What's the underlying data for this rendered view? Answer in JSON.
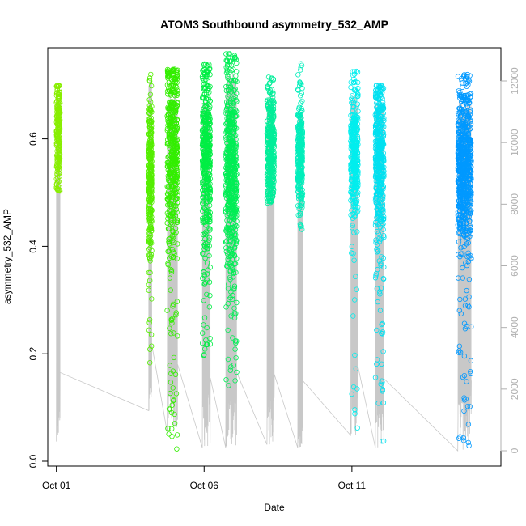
{
  "chart_data": {
    "type": "scatter",
    "title": "ATOM3 Southbound asymmetry_532_AMP",
    "xlabel": "Date",
    "ylabel": "asymmetry_532_AMP",
    "x_unit": "date",
    "xlim": [
      "2000-09-30T17:00",
      "2000-10-16T01:00"
    ],
    "ylim": [
      0,
      0.75
    ],
    "x_ticks": [
      {
        "value": "2000-10-01T00:00",
        "label": "Oct 01"
      },
      {
        "value": "2000-10-06T00:00",
        "label": "Oct 06"
      },
      {
        "value": "2000-10-11T00:00",
        "label": "Oct 11"
      }
    ],
    "y_ticks": [
      0.0,
      0.2,
      0.4,
      0.6
    ],
    "y_tick_labels": [
      "0.0",
      "0.2",
      "0.4",
      "0.6"
    ],
    "secondary_axis": {
      "color": "#b0b0b0",
      "ylim": [
        0,
        12000
      ],
      "ticks": [
        0,
        2000,
        4000,
        6000,
        8000,
        10000,
        12000
      ],
      "tick_labels": [
        "0",
        "2000",
        "4000",
        "6000",
        "8000",
        "10000",
        "12000"
      ]
    },
    "grid": false,
    "legend": "none",
    "series": [
      {
        "x_start": "2000-10-01T00:00",
        "x_end": "2000-10-01T03:00",
        "y_center": 0.61,
        "y_spread": 0.05,
        "y_min": 0.5,
        "y_max": 0.7,
        "n": 220,
        "color": "#88ee00",
        "alt_min": 300,
        "alt_max": 11500
      },
      {
        "x_start": "2000-10-04T03:00",
        "x_end": "2000-10-04T05:30",
        "y_center": 0.53,
        "y_spread": 0.08,
        "y_min": 0.18,
        "y_max": 0.73,
        "n": 300,
        "color": "#55ee00",
        "alt_min": 1300,
        "alt_max": 12000
      },
      {
        "x_start": "2000-10-04T18:00",
        "x_end": "2000-10-05T02:30",
        "y_center": 0.58,
        "y_spread": 0.1,
        "y_min": 0.02,
        "y_max": 0.73,
        "n": 520,
        "color": "#33ee00",
        "alt_min": 600,
        "alt_max": 11600
      },
      {
        "x_start": "2000-10-05T22:30",
        "x_end": "2000-10-06T05:00",
        "y_center": 0.57,
        "y_spread": 0.09,
        "y_min": 0.19,
        "y_max": 0.74,
        "n": 460,
        "color": "#00ee44",
        "alt_min": 100,
        "alt_max": 11400
      },
      {
        "x_start": "2000-10-06T17:30",
        "x_end": "2000-10-07T02:30",
        "y_center": 0.54,
        "y_spread": 0.1,
        "y_min": 0.14,
        "y_max": 0.76,
        "n": 600,
        "color": "#00ee55",
        "alt_min": 100,
        "alt_max": 12300
      },
      {
        "x_start": "2000-10-08T03:00",
        "x_end": "2000-10-08T09:00",
        "y_center": 0.58,
        "y_spread": 0.06,
        "y_min": 0.48,
        "y_max": 0.72,
        "n": 360,
        "color": "#00ee99",
        "alt_min": 200,
        "alt_max": 11600
      },
      {
        "x_start": "2000-10-09T04:00",
        "x_end": "2000-10-09T08:00",
        "y_center": 0.57,
        "y_spread": 0.05,
        "y_min": 0.43,
        "y_max": 0.74,
        "n": 300,
        "color": "#00eebb",
        "alt_min": 100,
        "alt_max": 11000
      },
      {
        "x_start": "2000-10-10T23:00",
        "x_end": "2000-10-11T05:00",
        "y_center": 0.57,
        "y_spread": 0.06,
        "y_min": 0.04,
        "y_max": 0.73,
        "n": 360,
        "color": "#00eeee",
        "alt_min": 500,
        "alt_max": 11600
      },
      {
        "x_start": "2000-10-11T19:00",
        "x_end": "2000-10-12T02:00",
        "y_center": 0.56,
        "y_spread": 0.08,
        "y_min": 0.02,
        "y_max": 0.7,
        "n": 460,
        "color": "#00e0f0",
        "alt_min": 100,
        "alt_max": 11300
      },
      {
        "x_start": "2000-10-14T14:00",
        "x_end": "2000-10-15T01:00",
        "y_center": 0.55,
        "y_spread": 0.07,
        "y_min": 0.01,
        "y_max": 0.72,
        "n": 760,
        "color": "#0099ff",
        "alt_min": 0,
        "alt_max": 11400
      }
    ]
  }
}
